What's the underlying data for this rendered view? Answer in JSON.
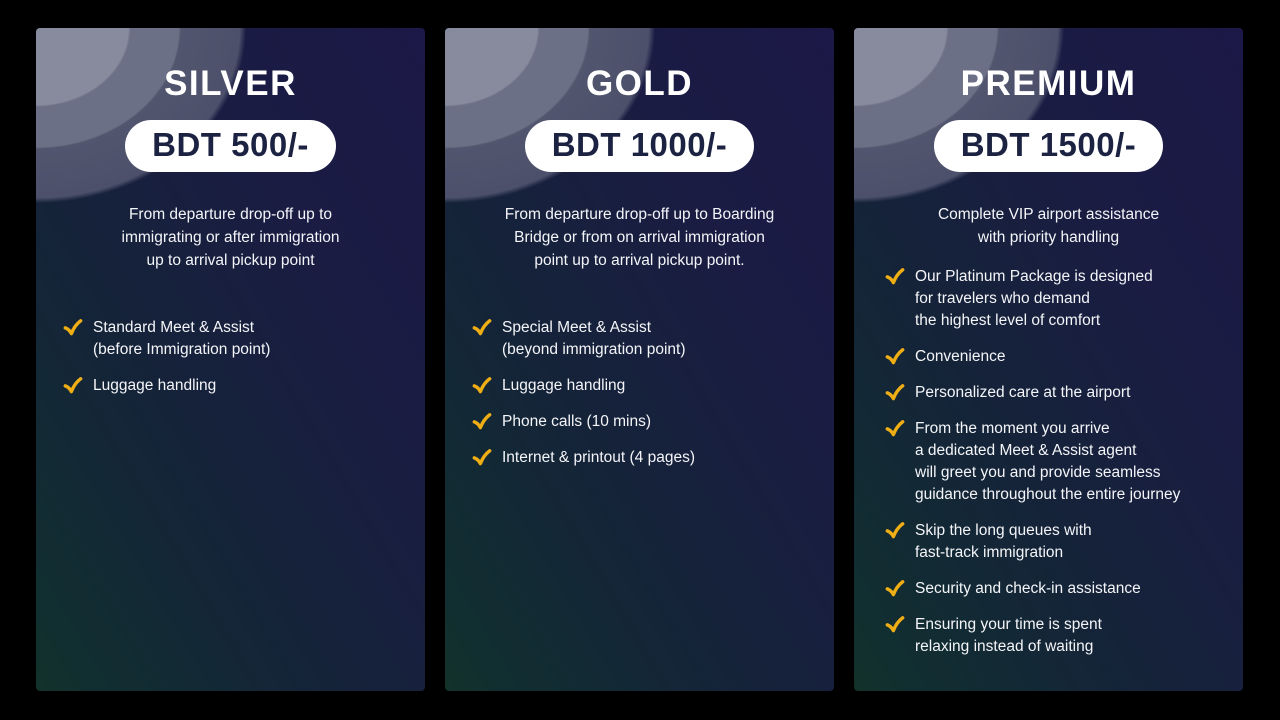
{
  "colors": {
    "page_background": "#000000",
    "card_top": "#1c1847",
    "card_bottom": "#123229",
    "pill_bg": "#ffffff",
    "pill_text": "#1c2342",
    "checkmark": "#efae14",
    "text": "#ffffff"
  },
  "icons": {
    "feature_bullet": "check-icon"
  },
  "cards": [
    {
      "title": "SILVER",
      "price": "BDT 500/-",
      "description": "From departure drop-off up to\nimmigrating or after immigration\nup to arrival pickup point",
      "features": [
        "Standard Meet & Assist\n(before Immigration point)",
        "Luggage handling"
      ]
    },
    {
      "title": "GOLD",
      "price": "BDT 1000/-",
      "description": "From departure drop-off up to Boarding\nBridge or from on arrival immigration\npoint up to arrival pickup point.",
      "features": [
        "Special Meet & Assist\n(beyond immigration point)",
        "Luggage handling",
        "Phone calls (10 mins)",
        "Internet & printout (4 pages)"
      ]
    },
    {
      "title": "PREMIUM",
      "price": "BDT 1500/-",
      "description": "Complete VIP airport assistance\nwith priority handling",
      "features": [
        "Our Platinum Package is designed\nfor travelers who demand\nthe highest level of comfort",
        "Convenience",
        "Personalized care at the airport",
        "From the moment you arrive\na dedicated Meet & Assist agent\nwill greet you and provide seamless\nguidance throughout the entire journey",
        "Skip the long queues with\nfast-track immigration",
        "Security and check-in assistance",
        "Ensuring your time is spent\nrelaxing instead of waiting"
      ]
    }
  ]
}
